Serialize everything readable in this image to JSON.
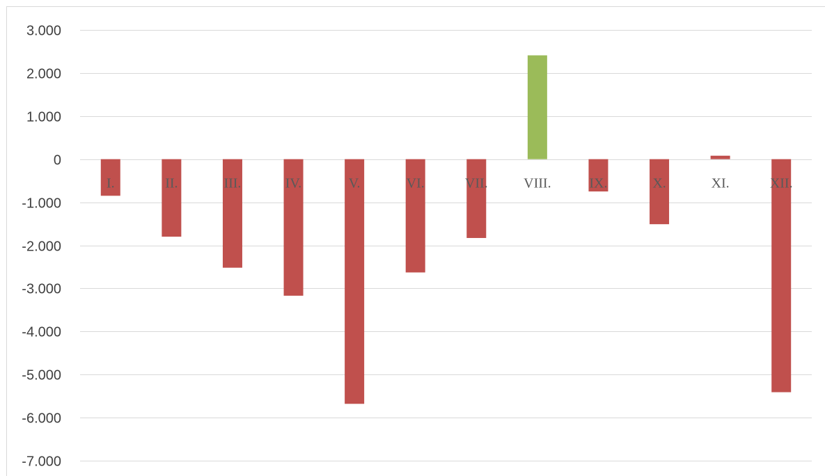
{
  "chart_data": {
    "type": "bar",
    "title": "",
    "xlabel": "",
    "ylabel": "",
    "categories": [
      "I.",
      "II.",
      "III.",
      "IV.",
      "V.",
      "VI.",
      "VII.",
      "VIII.",
      "IX.",
      "X.",
      "XI.",
      "XII."
    ],
    "values": [
      -850,
      -1800,
      -2520,
      -3170,
      -5680,
      -2630,
      -1830,
      2410,
      -750,
      -1510,
      80,
      -5410
    ],
    "ylim": [
      -7000,
      3000
    ],
    "yticks": [
      3000,
      2000,
      1000,
      0,
      -1000,
      -2000,
      -3000,
      -4000,
      -5000,
      -6000,
      -7000
    ],
    "ytick_labels": [
      "3.000",
      "2.000",
      "1.000",
      "0",
      "-1.000",
      "-2.000",
      "-3.000",
      "-4.000",
      "-5.000",
      "-6.000",
      "-7.000"
    ],
    "grid": true,
    "legend": "none",
    "colors": {
      "negative": "#c0504d",
      "positive_highlight": "#9bbb59",
      "small_positive": "#c0504d",
      "gridline": "#d9d9d9",
      "text": "#404040",
      "category_text": "#595959"
    },
    "highlight_category": "VIII."
  }
}
